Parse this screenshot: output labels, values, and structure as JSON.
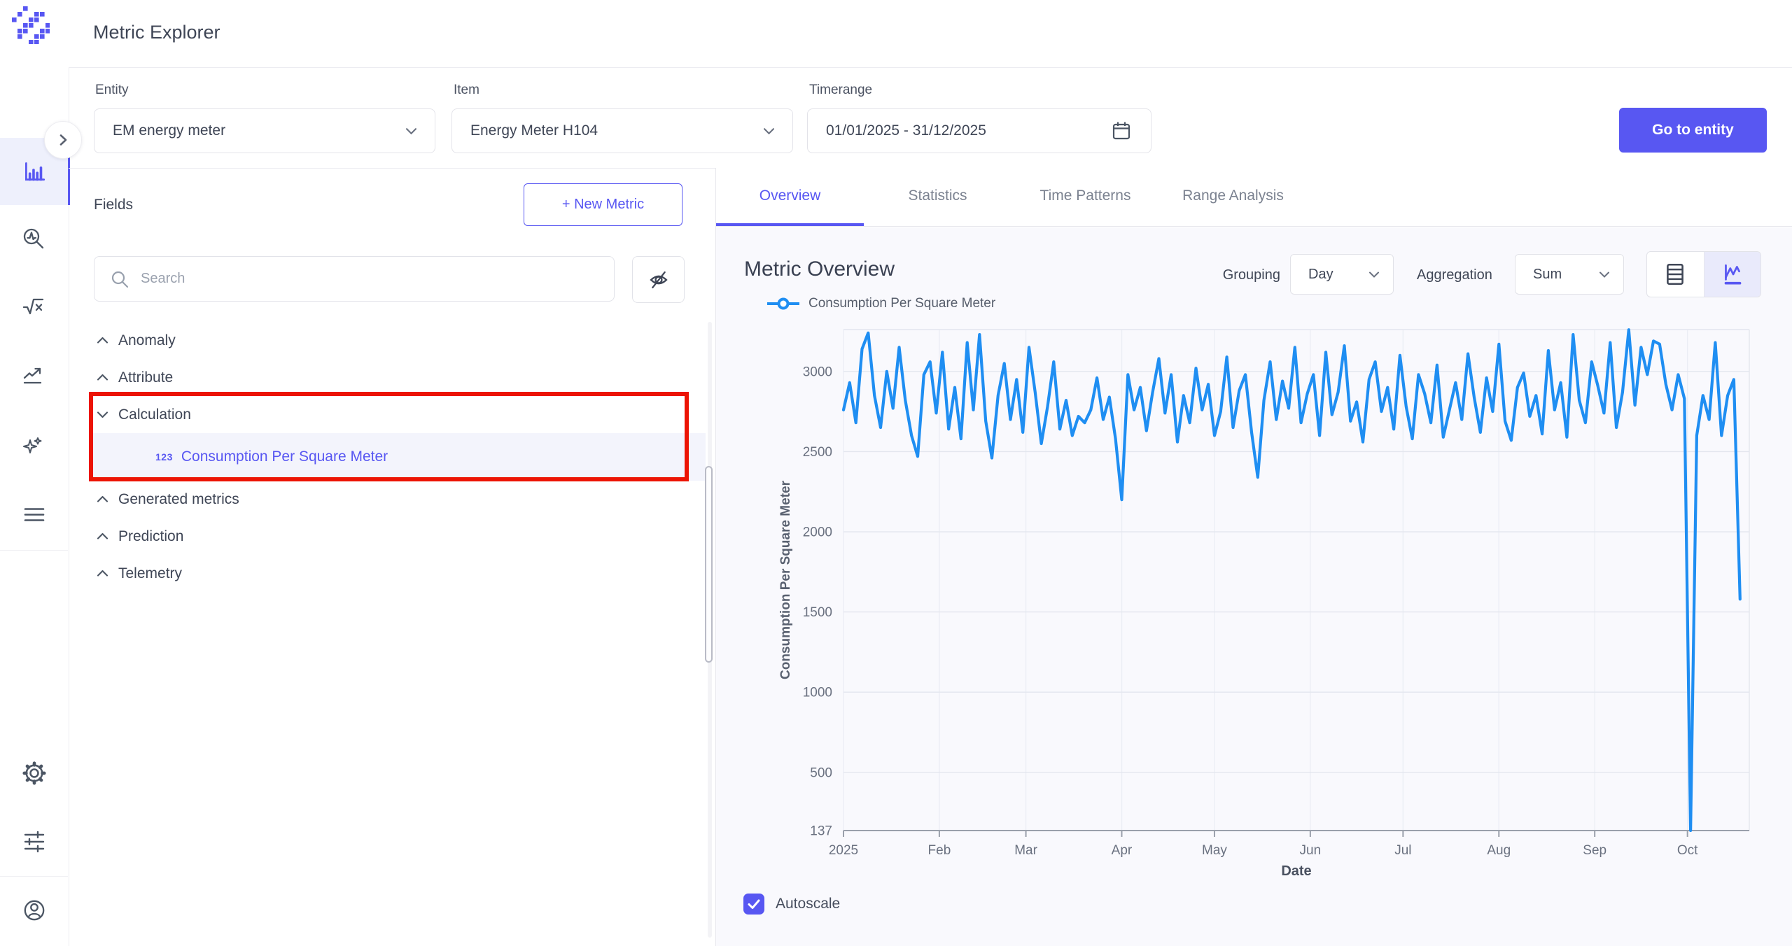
{
  "app": {
    "title": "Metric Explorer"
  },
  "sidebar": {
    "items": [
      {
        "name": "home-icon"
      },
      {
        "name": "metric-explorer-icon",
        "active": true
      },
      {
        "name": "anomaly-search-icon"
      },
      {
        "name": "formula-sqrt-icon"
      },
      {
        "name": "trend-icon"
      },
      {
        "name": "ai-sparkles-icon"
      },
      {
        "name": "menu-icon"
      },
      {
        "name": "settings-gear-icon"
      },
      {
        "name": "sliders-icon"
      },
      {
        "name": "user-icon"
      }
    ]
  },
  "filters": {
    "entity": {
      "label": "Entity",
      "value": "EM energy meter"
    },
    "item": {
      "label": "Item",
      "value": "Energy Meter H104"
    },
    "timerange": {
      "label": "Timerange",
      "value": "01/01/2025 - 31/12/2025"
    },
    "go_to_entity_label": "Go to entity"
  },
  "fields_panel": {
    "title": "Fields",
    "new_metric_label": "+ New Metric",
    "search_placeholder": "Search",
    "groups": [
      {
        "label": "Anomaly",
        "expanded": false
      },
      {
        "label": "Attribute",
        "expanded": false
      },
      {
        "label": "Calculation",
        "expanded": true,
        "children": [
          {
            "label": "Consumption Per Square Meter",
            "icon": "123",
            "selected": true
          }
        ]
      },
      {
        "label": "Generated metrics",
        "expanded": false
      },
      {
        "label": "Prediction",
        "expanded": false
      },
      {
        "label": "Telemetry",
        "expanded": false
      }
    ]
  },
  "annotation": {
    "type": "highlight-box",
    "color": "#ec1404",
    "around": "Calculation group"
  },
  "tabs": {
    "items": [
      "Overview",
      "Statistics",
      "Time Patterns",
      "Range Analysis"
    ],
    "active_index": 0
  },
  "overview": {
    "heading": "Metric Overview",
    "grouping_label": "Grouping",
    "grouping_value": "Day",
    "aggregation_label": "Aggregation",
    "aggregation_value": "Sum",
    "view_toggle": [
      "table",
      "chart"
    ],
    "active_view": "chart",
    "autoscale_label": "Autoscale",
    "autoscale_checked": true
  },
  "colors": {
    "accent": "#5857f2",
    "chart_line": "#1f8ef2",
    "annotation_red": "#ec1404",
    "text_dark": "#3f4656",
    "text_muted": "#6a7180"
  },
  "chart_data": {
    "type": "line",
    "xlabel": "Date",
    "ylabel": "Consumption Per Square Meter",
    "legend": [
      "Consumption Per Square Meter"
    ],
    "yticks": [
      137,
      500,
      1000,
      1500,
      2000,
      2500,
      3000
    ],
    "ylim": [
      137,
      3261
    ],
    "x_unit": "day",
    "x_start": "2025-01-01",
    "x_step_days": 2,
    "x_max_day": 293,
    "month_ticks": [
      {
        "label": "2025",
        "day": 0
      },
      {
        "label": "Feb",
        "day": 31
      },
      {
        "label": "Mar",
        "day": 59
      },
      {
        "label": "Apr",
        "day": 90
      },
      {
        "label": "May",
        "day": 120
      },
      {
        "label": "Jun",
        "day": 151
      },
      {
        "label": "Jul",
        "day": 181
      },
      {
        "label": "Aug",
        "day": 212
      },
      {
        "label": "Sep",
        "day": 243
      },
      {
        "label": "Oct",
        "day": 273
      }
    ],
    "series": [
      {
        "name": "Consumption Per Square Meter",
        "color": "#1f8ef2",
        "values": [
          2760,
          2930,
          2680,
          3140,
          3240,
          2850,
          2650,
          3000,
          2770,
          3150,
          2820,
          2600,
          2470,
          2980,
          3060,
          2740,
          3120,
          2640,
          2900,
          2580,
          3180,
          2760,
          3230,
          2690,
          2460,
          2850,
          3050,
          2700,
          2950,
          2620,
          3150,
          2870,
          2550,
          2780,
          3060,
          2640,
          2820,
          2600,
          2720,
          2680,
          2760,
          2960,
          2700,
          2840,
          2580,
          2200,
          2980,
          2760,
          2900,
          2630,
          2870,
          3080,
          2740,
          2980,
          2560,
          2850,
          2680,
          3020,
          2760,
          2920,
          2600,
          2750,
          3090,
          2650,
          2880,
          2980,
          2620,
          2340,
          2820,
          3060,
          2700,
          2940,
          2770,
          3150,
          2680,
          2860,
          2980,
          2600,
          3120,
          2730,
          2870,
          3160,
          2690,
          2810,
          2560,
          2950,
          3060,
          2750,
          2900,
          2640,
          3100,
          2780,
          2580,
          2980,
          2860,
          2680,
          3040,
          2590,
          2760,
          2930,
          2700,
          3110,
          2840,
          2620,
          2960,
          2750,
          3170,
          2690,
          2570,
          2900,
          2990,
          2720,
          2850,
          2610,
          3130,
          2760,
          2930,
          2590,
          3230,
          2820,
          2680,
          3060,
          2910,
          2740,
          3180,
          2650,
          2870,
          3260,
          2790,
          3150,
          2980,
          3190,
          3170,
          2920,
          2760,
          2980,
          2830,
          137,
          2600,
          2850,
          2700,
          3180,
          2600,
          2850,
          2950,
          1580
        ]
      }
    ]
  }
}
